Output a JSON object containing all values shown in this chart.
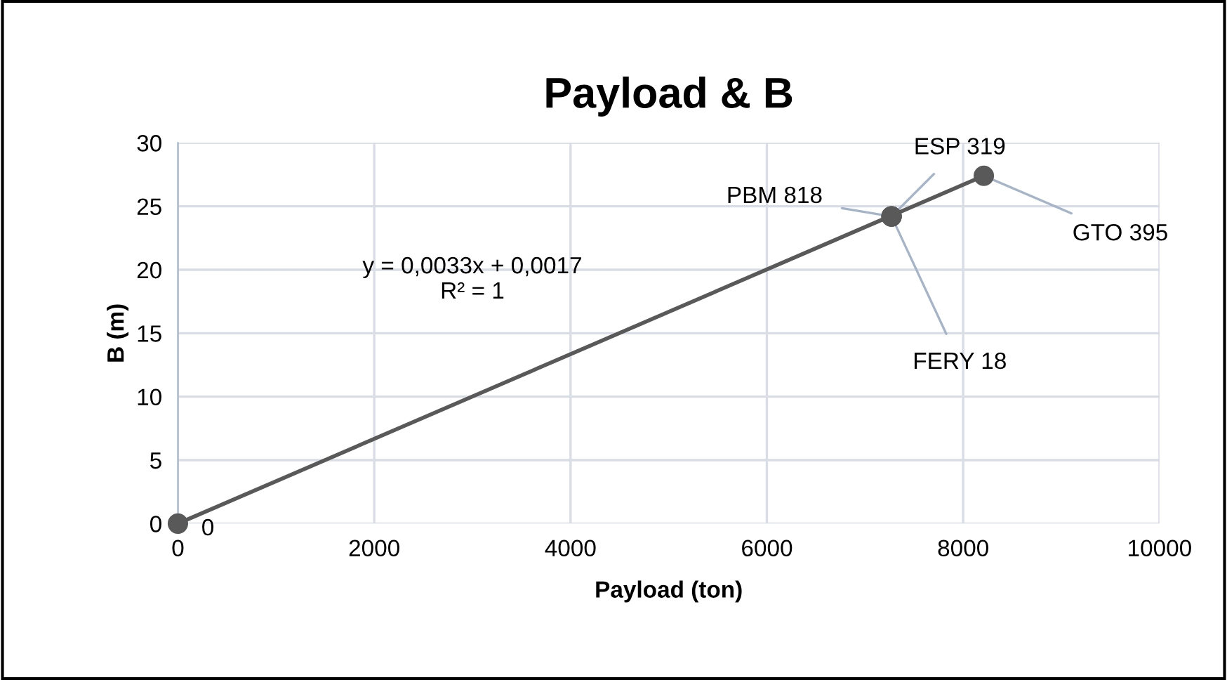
{
  "chart_data": {
    "type": "scatter",
    "title": "Payload & B",
    "xlabel": "Payload (ton)",
    "ylabel": "B (m)",
    "xlim": [
      0,
      10000
    ],
    "xticks": [
      0,
      2000,
      4000,
      6000,
      8000,
      10000
    ],
    "ylim": [
      0,
      30
    ],
    "yticks": [
      0,
      5,
      10,
      15,
      20,
      25,
      30
    ],
    "grid": true,
    "legend": false,
    "series": [
      {
        "marker": "circle",
        "color": "#595959",
        "x": [
          0,
          7270,
          7270,
          7270,
          8210
        ],
        "values": [
          0,
          24.2,
          24.2,
          24.2,
          27.4
        ],
        "value_labels": [
          "0",
          "PBM 818",
          "FERY 18",
          "ESP 319",
          "GTO 395"
        ]
      },
      {
        "type": "line",
        "color": "#595959",
        "line_style": "solid",
        "x": [
          0,
          8210
        ],
        "values": [
          0,
          27.4
        ]
      }
    ],
    "annotations": [
      "y = 0,0033x + 0,0017\nR² = 1"
    ]
  }
}
